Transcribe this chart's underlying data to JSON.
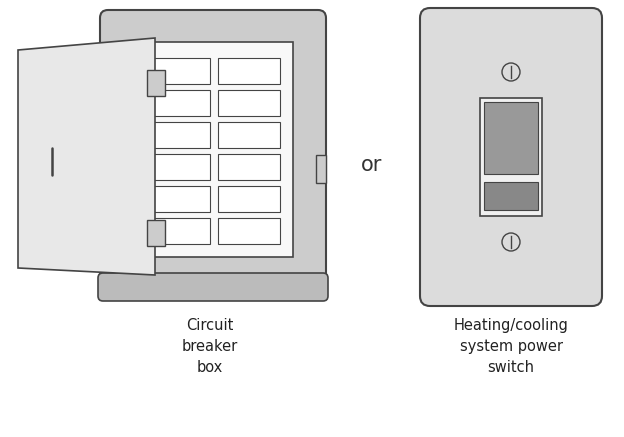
{
  "bg_color": "#ffffff",
  "figure_size": [
    6.24,
    4.37
  ],
  "dpi": 100,
  "box_color": "#cccccc",
  "box_inner_color": "#d8d8d8",
  "panel_white": "#f8f8f8",
  "breaker_color": "#ffffff",
  "door_color": "#e8e8e8",
  "bottom_bar_color": "#bbbbbb",
  "switch_plate_color": "#dcdcdc",
  "switch_toggle_gray": "#999999",
  "switch_toggle_dark": "#888888",
  "switch_surround": "#f0f0f0",
  "outline_color": "#444444",
  "lw": 1.0,
  "label_cb": "Circuit\nbreaker\nbox",
  "label_sw": "Heating/cooling\nsystem power\nswitch",
  "label_or": "or",
  "label_fontsize": 10.5
}
